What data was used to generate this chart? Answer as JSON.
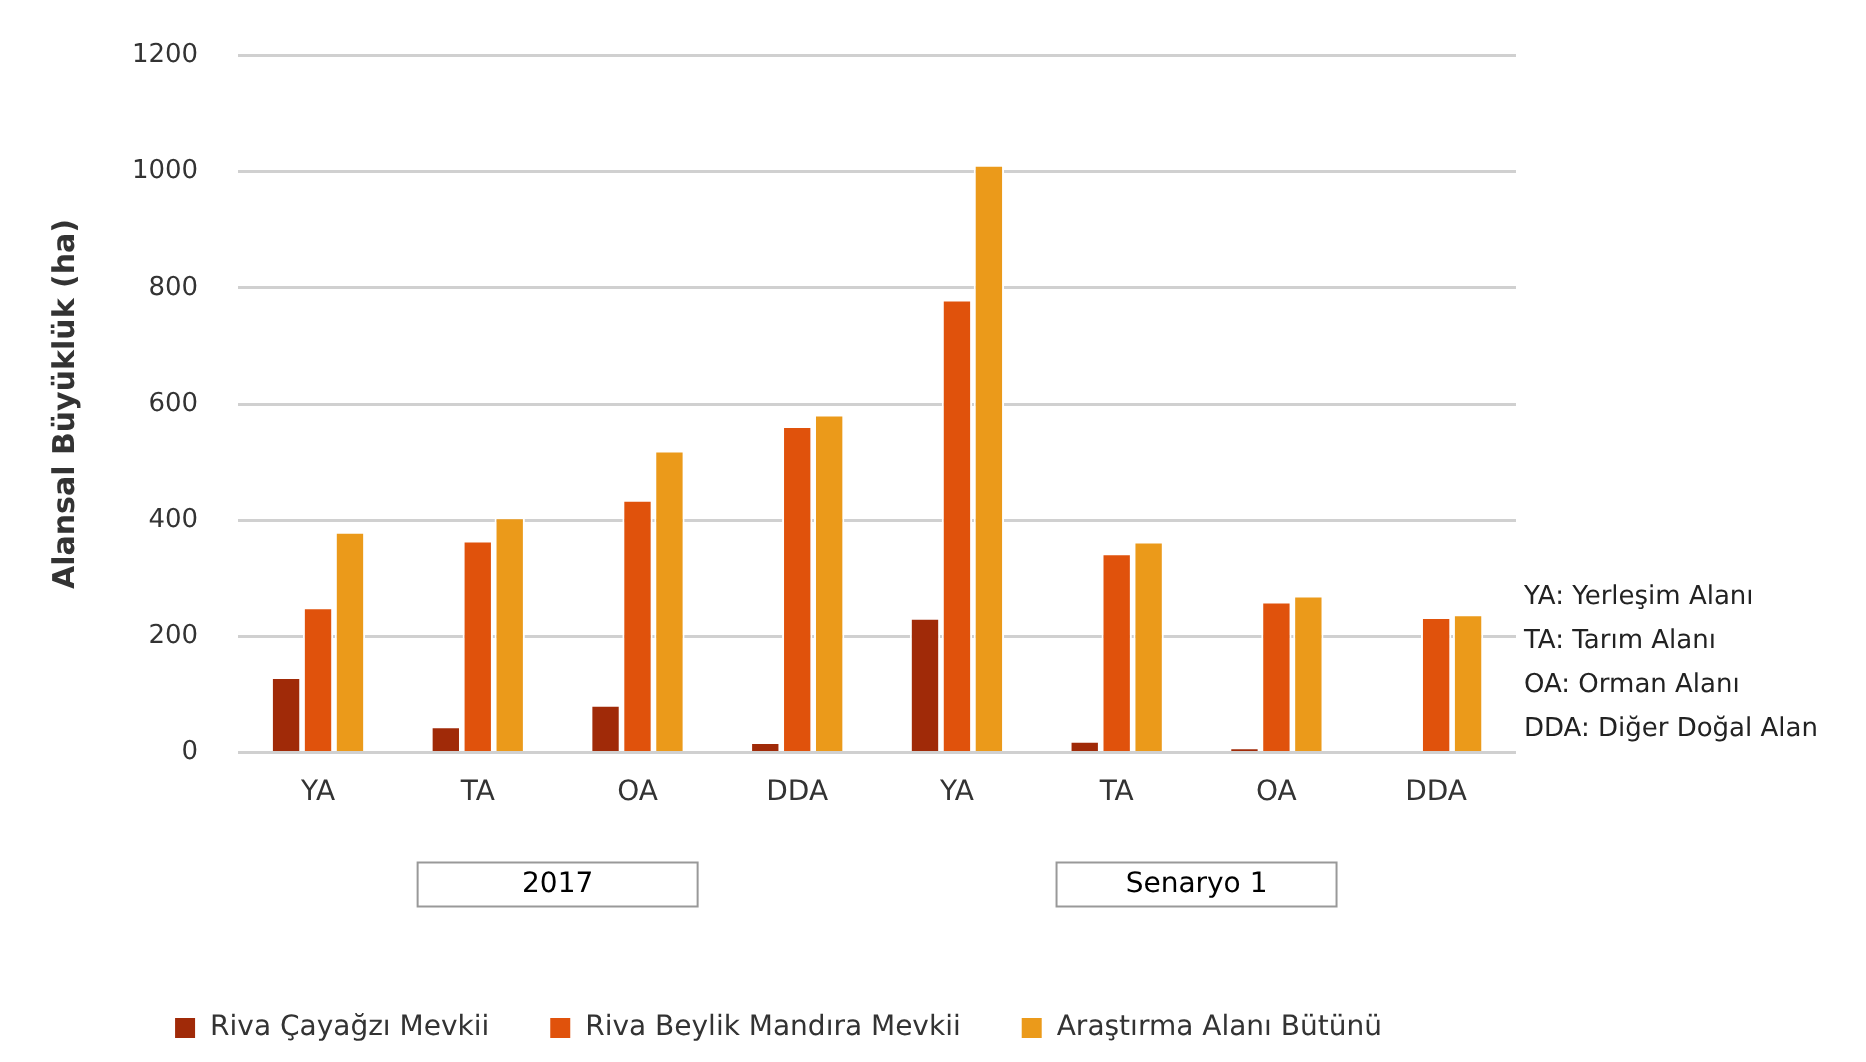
{
  "chart_data": {
    "type": "bar",
    "ylabel": "Alansal Büyüklük (ha)",
    "categories": [
      "YA",
      "TA",
      "OA",
      "DDA",
      "YA",
      "TA",
      "OA",
      "DDA"
    ],
    "series": [
      {
        "name": "Riva Çayağzı Mevkii",
        "color": "#a02a08",
        "values": [
          130,
          45,
          82,
          18,
          232,
          20,
          8,
          0
        ]
      },
      {
        "name": "Riva Beylik Mandıra Mevkii",
        "color": "#e0520c",
        "values": [
          250,
          365,
          435,
          562,
          780,
          343,
          260,
          233
        ]
      },
      {
        "name": "Araştırma Alanı Bütünü",
        "color": "#eb9a1a",
        "values": [
          380,
          405,
          520,
          582,
          1012,
          363,
          270,
          238
        ]
      }
    ],
    "ylim": [
      0,
      1200
    ],
    "yticks": [
      0,
      200,
      400,
      600,
      800,
      1000,
      1200
    ],
    "grid": "y",
    "legend": "bottom",
    "annotations": [
      "2017",
      "Senaryo 1",
      "YA: Yerleşim Alanı",
      "TA: Tarım Alanı",
      "OA: Orman Alanı",
      "DDA: Diğer Doğal Alan"
    ]
  }
}
